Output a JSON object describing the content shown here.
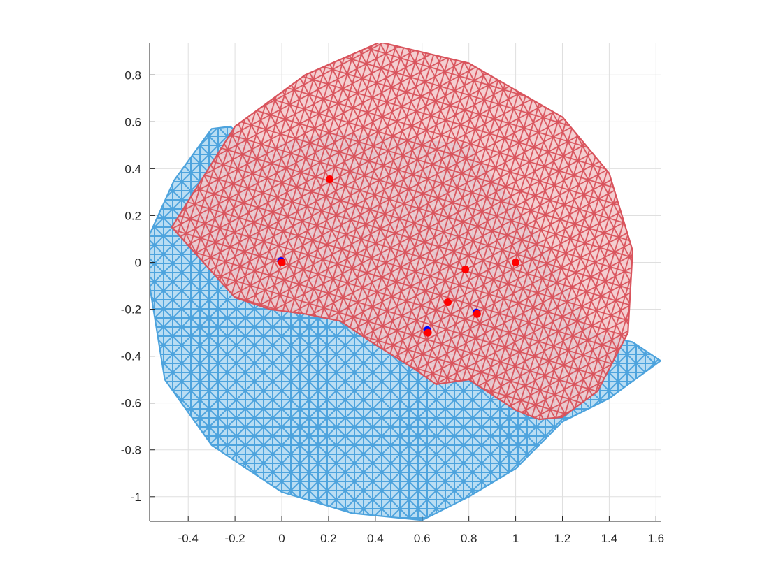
{
  "chart_data": {
    "type": "scatter",
    "xlim": [
      -0.565,
      1.62
    ],
    "ylim": [
      -1.105,
      0.935
    ],
    "grid": true,
    "aspect": "equal",
    "xticks": [
      -0.4,
      -0.2,
      0,
      0.2,
      0.4,
      0.6,
      0.8,
      1,
      1.2,
      1.4,
      1.6
    ],
    "xtick_labels": [
      "-0.4",
      "-0.2",
      "0",
      "0.2",
      "0.4",
      "0.6",
      "0.8",
      "1",
      "1.2",
      "1.4",
      "1.6"
    ],
    "yticks": [
      0.8,
      0.6,
      0.4,
      0.2,
      0,
      -0.2,
      -0.4,
      -0.6,
      -0.8,
      -1
    ],
    "ytick_labels": [
      "0.8",
      "0.6",
      "0.4",
      "0.2",
      "0",
      "-0.2",
      "-0.4",
      "-0.6",
      "-0.8",
      "-1"
    ],
    "series": [
      {
        "kind": "mesh",
        "color": "#4da3dd",
        "fill": "#b9ddf3",
        "boundary": [
          [
            -0.565,
            0.12
          ],
          [
            -0.46,
            0.35
          ],
          [
            -0.3,
            0.57
          ],
          [
            -0.22,
            0.58
          ],
          [
            -0.1,
            0.48
          ],
          [
            0.2,
            0.55
          ],
          [
            0.5,
            0.53
          ],
          [
            0.8,
            0.5
          ],
          [
            1.1,
            0.1
          ],
          [
            1.32,
            -0.3
          ],
          [
            1.5,
            -0.34
          ],
          [
            1.62,
            -0.42
          ],
          [
            1.4,
            -0.58
          ],
          [
            1.2,
            -0.68
          ],
          [
            1.0,
            -0.88
          ],
          [
            0.8,
            -1.0
          ],
          [
            0.6,
            -1.1
          ],
          [
            0.3,
            -1.07
          ],
          [
            0.0,
            -0.98
          ],
          [
            -0.3,
            -0.78
          ],
          [
            -0.5,
            -0.5
          ],
          [
            -0.565,
            -0.1
          ]
        ]
      },
      {
        "kind": "mesh",
        "color": "#d9535c",
        "fill": "#f3c9cb",
        "boundary": [
          [
            -0.47,
            0.15
          ],
          [
            -0.2,
            0.58
          ],
          [
            0.1,
            0.8
          ],
          [
            0.42,
            0.94
          ],
          [
            0.8,
            0.85
          ],
          [
            1.2,
            0.62
          ],
          [
            1.4,
            0.38
          ],
          [
            1.5,
            0.05
          ],
          [
            1.48,
            -0.3
          ],
          [
            1.35,
            -0.55
          ],
          [
            1.2,
            -0.66
          ],
          [
            1.1,
            -0.67
          ],
          [
            1.0,
            -0.63
          ],
          [
            0.8,
            -0.5
          ],
          [
            0.66,
            -0.52
          ],
          [
            0.56,
            -0.45
          ],
          [
            0.4,
            -0.35
          ],
          [
            0.25,
            -0.25
          ],
          [
            0.1,
            -0.22
          ],
          [
            -0.05,
            -0.2
          ],
          [
            -0.2,
            -0.15
          ],
          [
            -0.38,
            0.05
          ]
        ]
      },
      {
        "kind": "points",
        "color": "#ff0000",
        "x": [
          0.0,
          0.205,
          0.625,
          0.71,
          0.785,
          0.835,
          1.0
        ],
        "y": [
          0.0,
          0.355,
          -0.3,
          -0.17,
          -0.03,
          -0.22,
          0.0
        ]
      },
      {
        "kind": "points",
        "color": "#0000ff",
        "x": [
          0.0,
          0.625,
          0.835
        ],
        "y": [
          0.0,
          -0.295,
          -0.22
        ]
      }
    ]
  }
}
